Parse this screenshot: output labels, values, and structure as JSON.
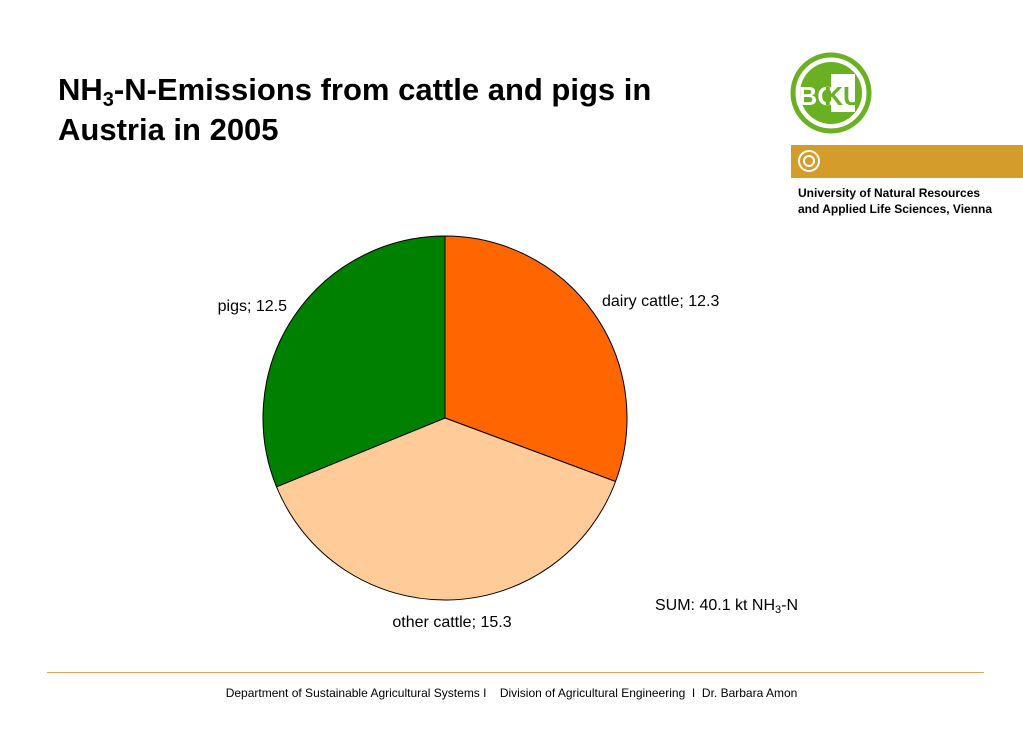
{
  "title": {
    "prefix": "NH",
    "subscript": "3",
    "line1_rest": "-N-Emissions from cattle and pigs in",
    "line2": "Austria in 2005"
  },
  "logo": {
    "text_left": "BO",
    "text_right": "KU",
    "color_green": "#6ab023",
    "color_gold": "#d49c2a"
  },
  "university": {
    "line1": "University of Natural Resources",
    "line2": "and Applied Life Sciences, Vienna"
  },
  "chart_data": {
    "type": "pie",
    "slices": [
      {
        "label": "dairy cattle",
        "value": 12.3,
        "color": "#ff6600",
        "display": "dairy cattle; 12.3"
      },
      {
        "label": "other cattle",
        "value": 15.3,
        "color": "#ffcc99",
        "display": "other cattle; 15.3"
      },
      {
        "label": "pigs",
        "value": 12.5,
        "color": "#008000",
        "display": "pigs; 12.5"
      }
    ]
  },
  "sum": {
    "prefix": "SUM: 40.1 kt NH",
    "subscript": "3",
    "suffix": "-N"
  },
  "footer": {
    "text": "Department of Sustainable Agricultural Systems I    Division of Agricultural Engineering  I  Dr. Barbara Amon"
  }
}
